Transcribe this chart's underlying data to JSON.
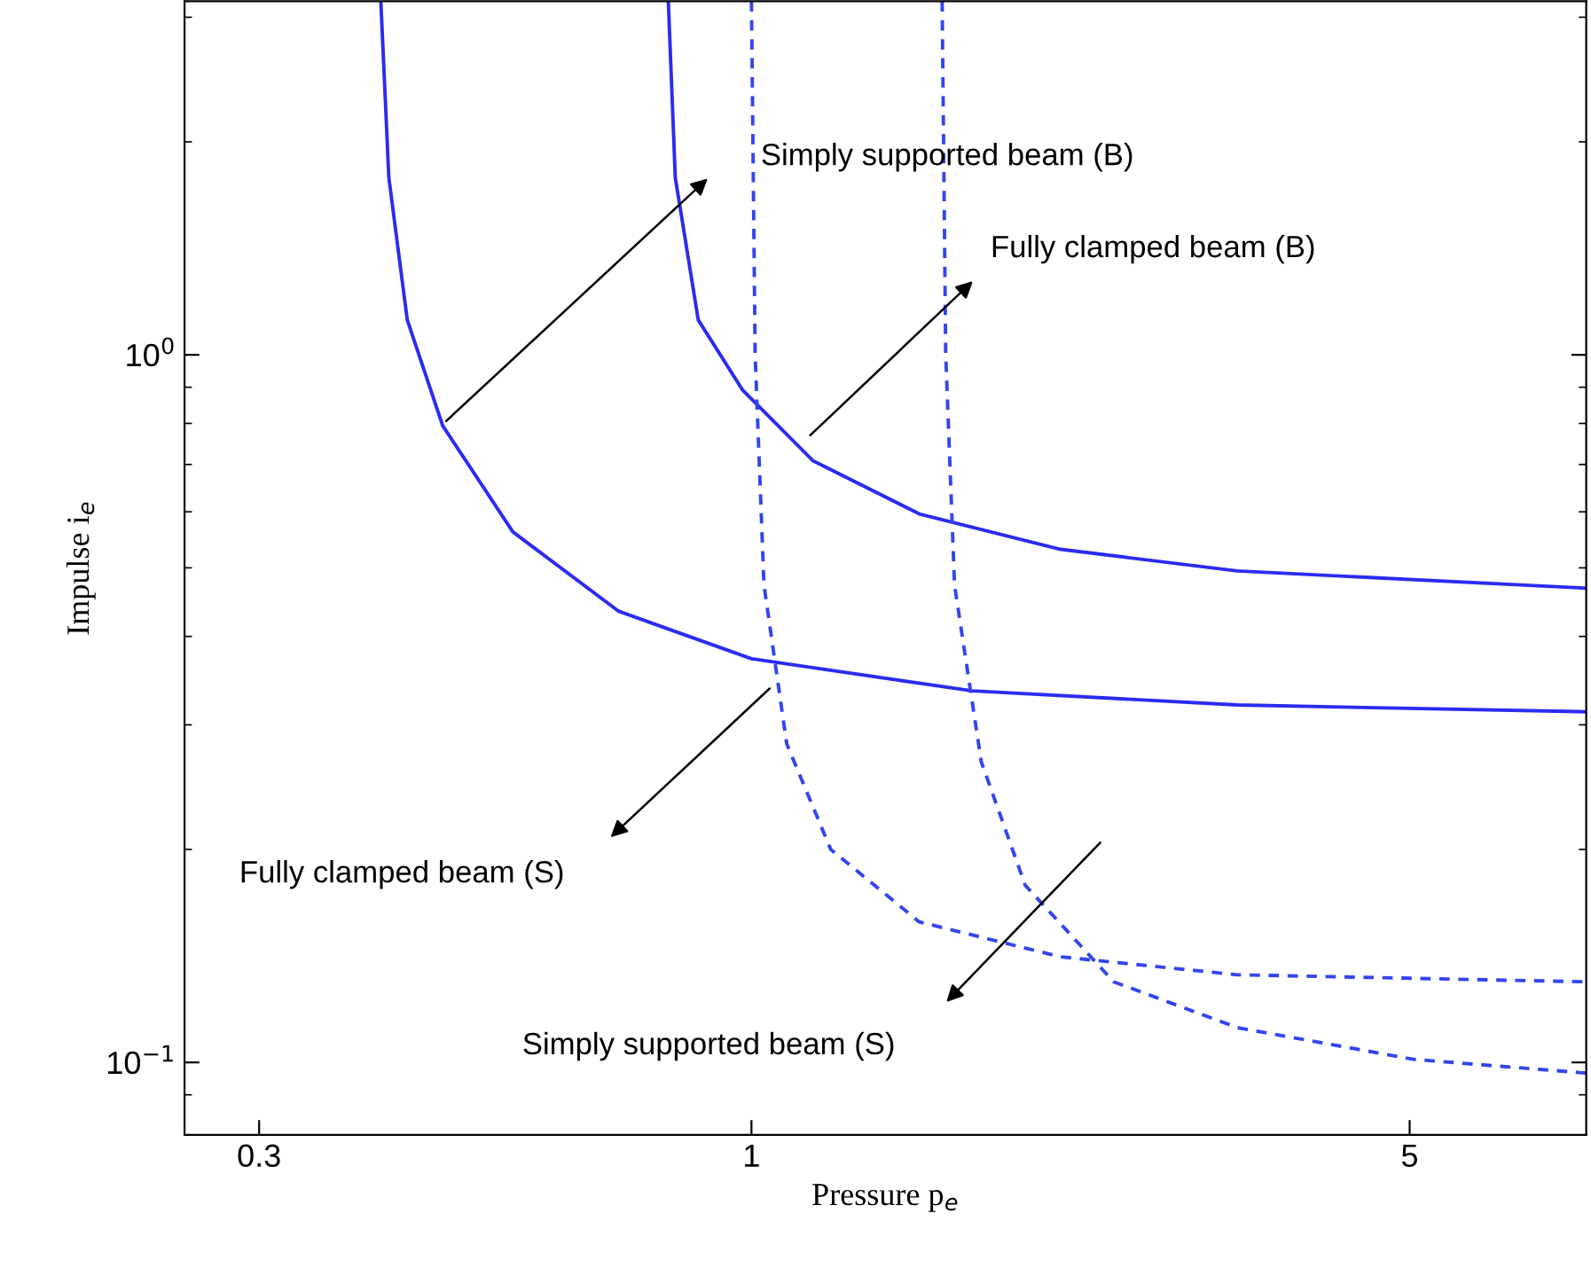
{
  "chart_data": {
    "type": "line",
    "xlabel": "Pressure p$_{e}$",
    "ylabel": "Impulse i$_{e}$",
    "log": "xy",
    "grid": false,
    "marker": "none",
    "xlim": [
      0.25,
      7.7
    ],
    "xticks": [
      0.3,
      1,
      5
    ],
    "ylim": [
      0.079,
      3.16
    ],
    "yticks": [
      {
        "value": 0.1,
        "label": "10$^{−1}$"
      },
      {
        "value": 1,
        "label": "10$^{0}$"
      },
      {
        "value": 0.09,
        "label": null
      },
      {
        "value": 0.2,
        "label": null
      },
      {
        "value": 0.3,
        "label": null
      },
      {
        "value": 0.4,
        "label": null
      },
      {
        "value": 0.5,
        "label": null
      },
      {
        "value": 0.6,
        "label": null
      },
      {
        "value": 0.7,
        "label": null
      },
      {
        "value": 0.8,
        "label": null
      },
      {
        "value": 0.9,
        "label": null
      },
      {
        "value": 2,
        "label": null
      },
      {
        "value": 3,
        "label": null
      }
    ],
    "series": [
      {
        "color": "#2b2bf0",
        "line_style": "solid",
        "x": [
          0.404,
          0.412,
          0.431,
          0.47,
          0.558,
          0.723,
          1.0,
          1.716,
          3.28,
          7.69
        ],
        "values": [
          3.16,
          1.78,
          1.12,
          0.794,
          0.562,
          0.434,
          0.372,
          0.335,
          0.32,
          0.313
        ]
      },
      {
        "color": "#2b2bf0",
        "line_style": "solid",
        "x": [
          0.816,
          0.83,
          0.878,
          0.979,
          1.163,
          1.507,
          2.13,
          3.28,
          7.69
        ],
        "values": [
          3.16,
          1.78,
          1.12,
          0.891,
          0.708,
          0.596,
          0.531,
          0.495,
          0.468
        ]
      },
      {
        "color": "#3344ee",
        "line_style": "dashed",
        "x": [
          1.0,
          1.009,
          1.031,
          1.09,
          1.214,
          1.507,
          2.13,
          3.28,
          7.69
        ],
        "values": [
          3.16,
          1.0,
          0.473,
          0.282,
          0.2,
          0.158,
          0.141,
          0.133,
          0.13
        ]
      },
      {
        "color": "#3344ee",
        "line_style": "dashed",
        "x": [
          1.594,
          1.608,
          1.643,
          1.754,
          1.953,
          2.425,
          3.28,
          5.05,
          7.69
        ],
        "values": [
          3.16,
          1.0,
          0.473,
          0.266,
          0.178,
          0.13,
          0.112,
          0.101,
          0.0966
        ]
      }
    ],
    "annotations": [
      "Simply supported beam (B)",
      "Fully clamped beam (B)",
      "Fully clamped beam (S)",
      "Simply supported beam (S)"
    ]
  }
}
